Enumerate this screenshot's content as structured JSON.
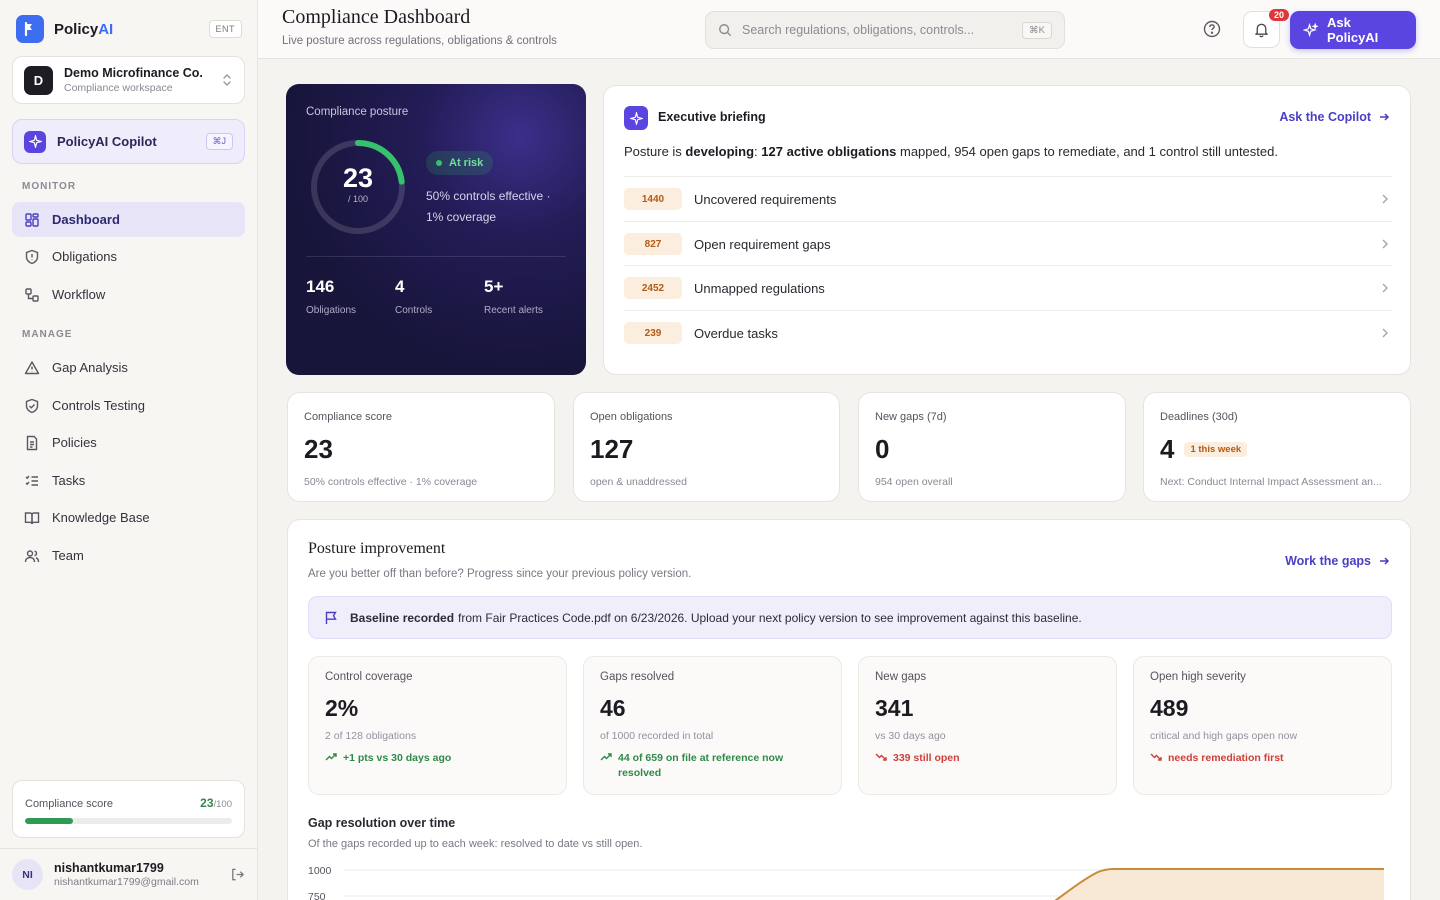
{
  "brand": {
    "name_main": "Policy",
    "name_accent": "AI",
    "tag": "ENT"
  },
  "workspace": {
    "initial": "D",
    "name": "Demo Microfinance Co.",
    "sub": "Compliance workspace"
  },
  "copilot": {
    "label": "PolicyAI Copilot",
    "shortcut": "⌘J"
  },
  "nav": {
    "monitor_title": "MONITOR",
    "monitor": [
      {
        "label": "Dashboard",
        "icon": "dashboard-icon",
        "active": true
      },
      {
        "label": "Obligations",
        "icon": "shield-alert-icon"
      },
      {
        "label": "Workflow",
        "icon": "workflow-icon"
      }
    ],
    "manage_title": "MANAGE",
    "manage": [
      {
        "label": "Gap Analysis",
        "icon": "warning-triangle-icon"
      },
      {
        "label": "Controls Testing",
        "icon": "shield-check-icon"
      },
      {
        "label": "Policies",
        "icon": "document-icon"
      },
      {
        "label": "Tasks",
        "icon": "checklist-icon"
      },
      {
        "label": "Knowledge Base",
        "icon": "book-icon"
      },
      {
        "label": "Team",
        "icon": "users-icon"
      }
    ]
  },
  "sidebar_score": {
    "label": "Compliance score",
    "value": "23",
    "max": "/100",
    "fraction": 0.23
  },
  "user": {
    "initials": "NI",
    "name": "nishantkumar1799",
    "email": "nishantkumar1799@gmail.com"
  },
  "header": {
    "title": "Compliance Dashboard",
    "subtitle": "Live posture across regulations, obligations & controls",
    "search_placeholder": "Search regulations, obligations, controls...",
    "search_shortcut": "⌘K",
    "notifications": "20",
    "ask_button": "Ask PolicyAI"
  },
  "posture": {
    "title": "Compliance posture",
    "score": "23",
    "score_max": "/ 100",
    "score_fraction": 0.23,
    "status": "At risk",
    "description": "50% controls effective · 1% coverage",
    "stats": [
      {
        "value": "146",
        "label": "Obligations"
      },
      {
        "value": "4",
        "label": "Controls"
      },
      {
        "value": "5+",
        "label": "Recent alerts"
      }
    ]
  },
  "briefing": {
    "title": "Executive briefing",
    "link": "Ask the Copilot",
    "text_prefix": "Posture is ",
    "text_status": "developing",
    "text_mid": ": ",
    "text_obligations": "127 active obligations",
    "text_suffix": " mapped, 954 open gaps to remediate, and 1 control still untested.",
    "items": [
      {
        "count": "1440",
        "label": "Uncovered requirements"
      },
      {
        "count": "827",
        "label": "Open requirement gaps"
      },
      {
        "count": "2452",
        "label": "Unmapped regulations"
      },
      {
        "count": "239",
        "label": "Overdue tasks"
      }
    ]
  },
  "stats": [
    {
      "label": "Compliance score",
      "value": "23",
      "chip": "",
      "sub": "50% controls effective · 1% coverage"
    },
    {
      "label": "Open obligations",
      "value": "127",
      "chip": "",
      "sub": "open & unaddressed"
    },
    {
      "label": "New gaps (7d)",
      "value": "0",
      "chip": "",
      "sub": "954 open overall"
    },
    {
      "label": "Deadlines (30d)",
      "value": "4",
      "chip": "1 this week",
      "sub": "Next: Conduct Internal Impact Assessment an..."
    }
  ],
  "improvement": {
    "title": "Posture improvement",
    "subtitle": "Are you better off than before? Progress since your previous policy version.",
    "link": "Work the gaps",
    "baseline_bold": "Baseline recorded",
    "baseline_text": "from Fair Practices Code.pdf on 6/23/2026. Upload your next policy version to see improvement against this baseline.",
    "cards": [
      {
        "label": "Control coverage",
        "value": "2%",
        "sub": "2 of 128 obligations",
        "trend": "+1 pts vs 30 days ago",
        "direction": "up"
      },
      {
        "label": "Gaps resolved",
        "value": "46",
        "sub": "of 1000 recorded in total",
        "trend": "44 of 659 on file at reference now resolved",
        "direction": "up"
      },
      {
        "label": "New gaps",
        "value": "341",
        "sub": "vs 30 days ago",
        "trend": "339 still open",
        "direction": "down"
      },
      {
        "label": "Open high severity",
        "value": "489",
        "sub": "critical and high gaps open now",
        "trend": "needs remediation first",
        "direction": "down"
      }
    ],
    "chart_title": "Gap resolution over time",
    "chart_subtitle": "Of the gaps recorded up to each week: resolved to date vs still open.",
    "y_ticks": [
      "1000",
      "750"
    ]
  },
  "colors": {
    "accent": "#5b45e0",
    "brand": "#3d6df0",
    "success": "#2f9a52",
    "danger": "#cf3f3a",
    "warning": "#b35a16",
    "chart_line": "#c98a3a"
  }
}
